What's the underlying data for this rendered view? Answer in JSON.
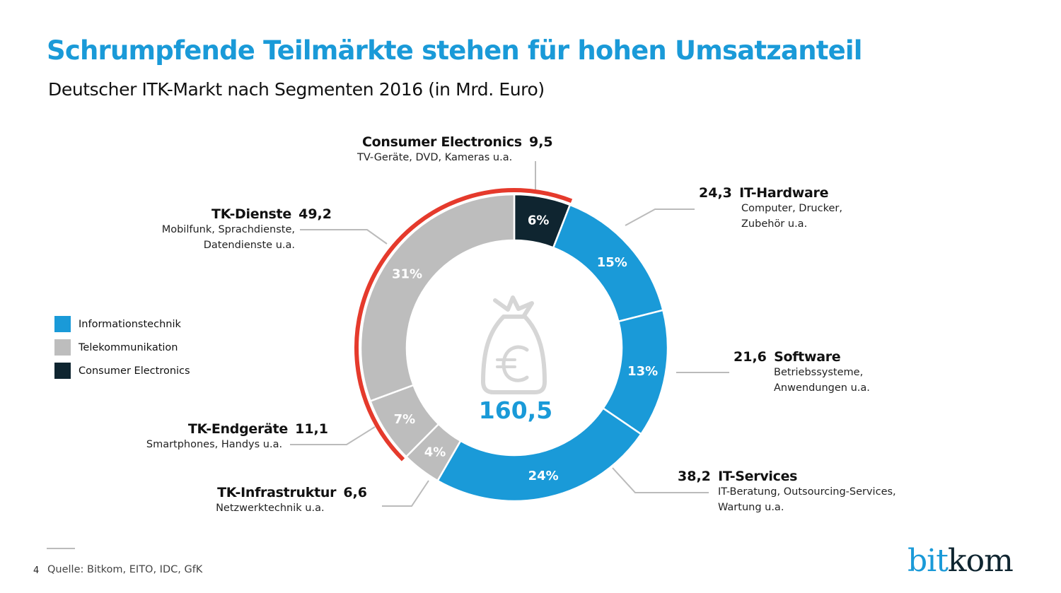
{
  "header": {
    "title": "Schrumpfende Teilmärkte stehen für hohen Umsatzanteil",
    "subtitle": "Deutscher ITK-Markt nach Segmenten 2016 (in Mrd. Euro)"
  },
  "colors": {
    "informationstechnik": "#1a9ad8",
    "telekommunikation": "#bdbdbd",
    "consumer_electronics": "#0f2530",
    "highlight_arc": "#e53a2c",
    "title": "#1a9ad8",
    "leader_line": "#bbbbbb"
  },
  "chart_data": {
    "type": "pie",
    "variant": "donut",
    "title": "Deutscher ITK-Markt nach Segmenten 2016 (in Mrd. Euro)",
    "total": 160.5,
    "total_label": "160,5",
    "start": "12 o'clock, clockwise",
    "segments": [
      {
        "name": "Consumer Electronics",
        "value": 9.5,
        "value_label": "9,5",
        "percent": 6,
        "percent_label": "6%",
        "group": "Consumer Electronics",
        "description": "TV-Geräte, DVD, Kameras u.a."
      },
      {
        "name": "IT-Hardware",
        "value": 24.3,
        "value_label": "24,3",
        "percent": 15,
        "percent_label": "15%",
        "group": "Informationstechnik",
        "description_lines": [
          "Computer, Drucker,",
          "Zubehör u.a."
        ]
      },
      {
        "name": "Software",
        "value": 21.6,
        "value_label": "21,6",
        "percent": 13,
        "percent_label": "13%",
        "group": "Informationstechnik",
        "description_lines": [
          "Betriebssysteme,",
          "Anwendungen u.a."
        ]
      },
      {
        "name": "IT-Services",
        "value": 38.2,
        "value_label": "38,2",
        "percent": 24,
        "percent_label": "24%",
        "group": "Informationstechnik",
        "description_lines": [
          "IT-Beratung, Outsourcing-Services,",
          "Wartung u.a."
        ]
      },
      {
        "name": "TK-Infrastruktur",
        "value": 6.6,
        "value_label": "6,6",
        "percent": 4,
        "percent_label": "4%",
        "group": "Telekommunikation",
        "description": "Netzwerktechnik u.a."
      },
      {
        "name": "TK-Endgeräte",
        "value": 11.1,
        "value_label": "11,1",
        "percent": 7,
        "percent_label": "7%",
        "group": "Telekommunikation",
        "description": "Smartphones, Handys u.a."
      },
      {
        "name": "TK-Dienste",
        "value": 49.2,
        "value_label": "49,2",
        "percent": 31,
        "percent_label": "31%",
        "group": "Telekommunikation",
        "description_lines": [
          "Mobilfunk, Sprachdienste,",
          "Datendienste u.a."
        ]
      }
    ],
    "highlighted_segments": [
      "TK-Endgeräte",
      "TK-Dienste",
      "Consumer Electronics"
    ],
    "highlight_meaning": "Schrumpfende Teilmärkte",
    "legend": {
      "placement": "left",
      "entries": [
        "Informationstechnik",
        "Telekommunikation",
        "Consumer Electronics"
      ]
    },
    "center_icon": "money-bag-euro-icon"
  },
  "footer": {
    "page_number": "4",
    "source": "Quelle: Bitkom, EITO, IDC, GfK",
    "logo_part1": "bit",
    "logo_part2": "kom"
  }
}
